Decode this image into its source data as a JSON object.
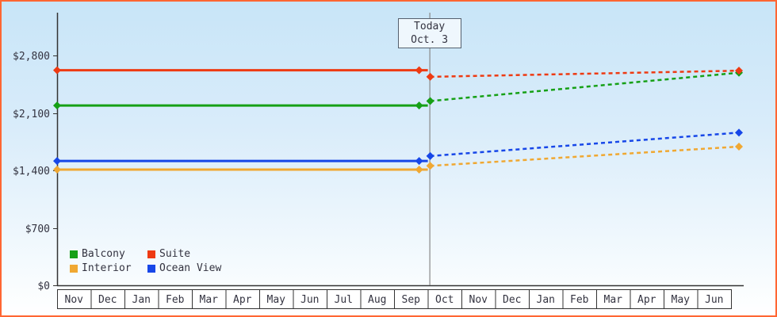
{
  "chart_data": {
    "type": "line",
    "title": "",
    "today_marker": {
      "label_line1": "Today",
      "label_line2": "Oct. 3",
      "month_index": 11,
      "month_fraction": 0.05
    },
    "y_axis": {
      "min": 0,
      "max": 2800,
      "ticks": [
        0,
        700,
        1400,
        2100,
        2800
      ],
      "tick_labels": [
        "$0",
        "$700",
        "$1,400",
        "$2,100",
        "$2,800"
      ]
    },
    "x_axis": {
      "tick_labels": [
        "Nov",
        "Dec",
        "Jan",
        "Feb",
        "Mar",
        "Apr",
        "May",
        "Jun",
        "Jul",
        "Aug",
        "Sep",
        "Oct",
        "Nov",
        "Dec",
        "Jan",
        "Feb",
        "Mar",
        "Apr",
        "May",
        "Jun"
      ]
    },
    "series": [
      {
        "name": "Balcony",
        "color": "#16a016",
        "history_style": "solid",
        "forecast_style": "dashed",
        "history_value": 2190,
        "today_value": 2245,
        "forecast_end_value": 2590
      },
      {
        "name": "Suite",
        "color": "#ee3a12",
        "history_style": "solid",
        "forecast_style": "dashed",
        "history_value": 2620,
        "today_value": 2540,
        "forecast_end_value": 2615
      },
      {
        "name": "Interior",
        "color": "#f0a832",
        "history_style": "solid",
        "forecast_style": "dashed",
        "history_value": 1410,
        "today_value": 1455,
        "forecast_end_value": 1690
      },
      {
        "name": "Ocean View",
        "color": "#1747e8",
        "history_style": "solid",
        "forecast_style": "dashed",
        "history_value": 1515,
        "today_value": 1575,
        "forecast_end_value": 1860
      }
    ],
    "legend": {
      "position": "bottom-left",
      "rows": [
        [
          "Balcony",
          "Suite"
        ],
        [
          "Interior",
          "Ocean View"
        ]
      ]
    },
    "grid": "off"
  },
  "colors": {
    "background_top": "#c8e5f8",
    "background_bottom": "#ffffff",
    "border": "#ff6633",
    "axis": "#333333",
    "today_line": "#888888",
    "text": "#333340",
    "month_cell_fill": "#ffffff"
  }
}
